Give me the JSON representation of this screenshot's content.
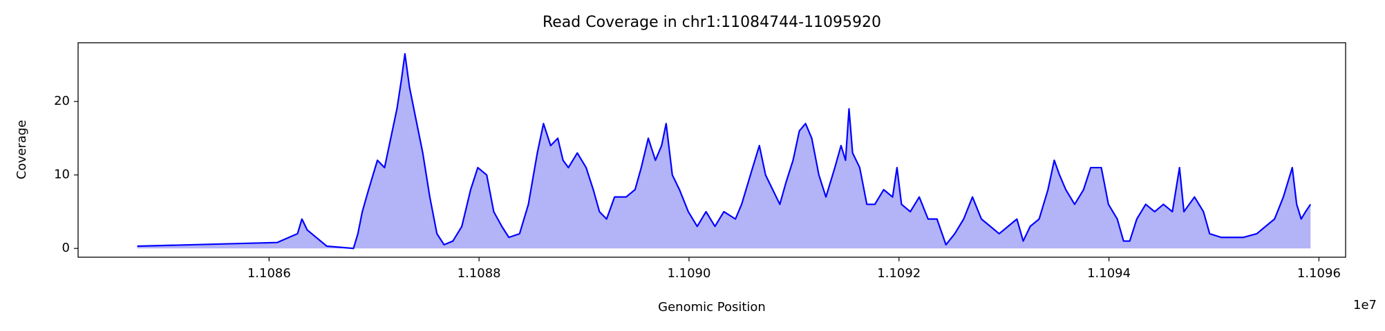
{
  "chart_data": {
    "type": "area",
    "title": "Read Coverage in chr1:11084744-11095920",
    "xlabel": "Genomic Position",
    "ylabel": "Coverage",
    "x_offset_label": "1e7",
    "color": "#0000ff",
    "fill_color": "#b3b3f7",
    "xlim": [
      11084181,
      11096254
    ],
    "ylim": [
      -1.2,
      28
    ],
    "xticks": [
      {
        "value": 11086000,
        "label": "1.1086"
      },
      {
        "value": 11088000,
        "label": "1.1088"
      },
      {
        "value": 11090000,
        "label": "1.1090"
      },
      {
        "value": 11092000,
        "label": "1.1092"
      },
      {
        "value": 11094000,
        "label": "1.1094"
      },
      {
        "value": 11096000,
        "label": "1.1096"
      }
    ],
    "yticks": [
      0,
      10,
      20
    ],
    "x": [
      11084744,
      11086076,
      11086271,
      11086313,
      11086364,
      11086550,
      11086804,
      11086846,
      11086888,
      11086948,
      11087032,
      11087100,
      11087159,
      11087218,
      11087261,
      11087294,
      11087337,
      11087379,
      11087464,
      11087531,
      11087599,
      11087667,
      11087751,
      11087836,
      11087920,
      11087988,
      11088073,
      11088140,
      11088217,
      11088284,
      11088386,
      11088470,
      11088555,
      11088614,
      11088682,
      11088750,
      11088800,
      11088851,
      11088936,
      11089020,
      11089088,
      11089147,
      11089215,
      11089291,
      11089401,
      11089486,
      11089545,
      11089612,
      11089680,
      11089739,
      11089782,
      11089841,
      11089909,
      11089993,
      11090078,
      11090162,
      11090247,
      11090332,
      11090442,
      11090501,
      11090585,
      11090670,
      11090729,
      11090797,
      11090865,
      11090924,
      11090991,
      11091051,
      11091110,
      11091169,
      11091237,
      11091304,
      11091389,
      11091448,
      11091491,
      11091524,
      11091558,
      11091626,
      11091694,
      11091770,
      11091854,
      11091939,
      11091981,
      11092024,
      11092108,
      11092193,
      11092277,
      11092362,
      11092447,
      11092531,
      11092616,
      11092700,
      11092785,
      11092870,
      11092954,
      11093039,
      11093123,
      11093183,
      11093250,
      11093335,
      11093419,
      11093479,
      11093529,
      11093589,
      11093673,
      11093758,
      11093826,
      11093927,
      11093995,
      11094079,
      11094139,
      11094198,
      11094265,
      11094350,
      11094435,
      11094519,
      11094604,
      11094672,
      11094714,
      11094815,
      11094900,
      11094959,
      11095069,
      11095281,
      11095408,
      11095492,
      11095577,
      11095661,
      11095746,
      11095788,
      11095831,
      11095873,
      11095920
    ],
    "values": [
      0.3,
      0.8,
      2,
      4,
      2.5,
      0.3,
      0,
      2,
      5,
      8,
      12,
      11,
      15,
      19,
      23,
      26.5,
      22,
      19,
      13,
      7,
      2,
      0.5,
      1,
      3,
      8,
      11,
      10,
      5,
      3,
      1.5,
      2,
      6,
      13,
      17,
      14,
      15,
      12,
      11,
      13,
      11,
      8,
      5,
      4,
      7,
      7,
      8,
      11,
      15,
      12,
      14,
      17,
      10,
      8,
      5,
      3,
      5,
      3,
      5,
      4,
      6,
      10,
      14,
      10,
      8,
      6,
      9,
      12,
      16,
      17,
      15,
      10,
      7,
      11,
      14,
      12,
      19,
      13,
      11,
      6,
      6,
      8,
      7,
      11,
      6,
      5,
      7,
      4,
      4,
      0.5,
      2,
      4,
      7,
      4,
      3,
      2,
      3,
      4,
      1,
      3,
      4,
      8,
      12,
      10,
      8,
      6,
      8,
      11,
      11,
      6,
      4,
      1,
      1,
      4,
      6,
      5,
      6,
      5,
      11,
      5,
      7,
      5,
      2,
      1.5,
      1.5,
      2,
      3,
      4,
      7,
      11,
      6,
      4,
      5,
      6
    ]
  }
}
